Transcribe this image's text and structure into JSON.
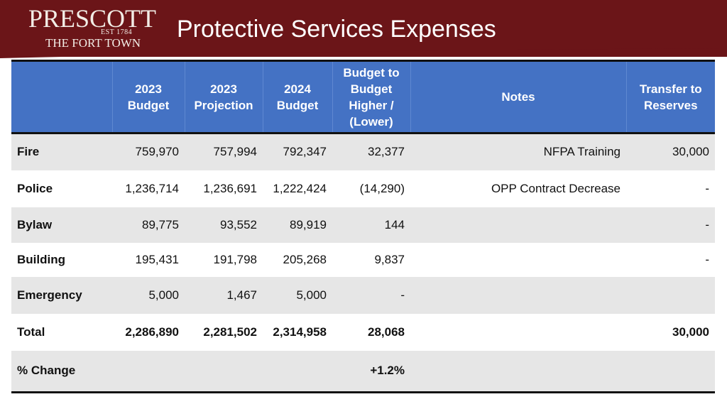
{
  "header": {
    "logo": {
      "name": "PRESCOTT",
      "est": "EST 1784",
      "tagline": "THE FORT TOWN"
    },
    "title": "Protective Services Expenses",
    "bg_color": "#6b1518"
  },
  "table": {
    "header_color": "#4472c4",
    "columns": [
      "",
      "2023 Budget",
      "2023 Projection",
      "2024 Budget",
      "Budget to Budget Higher / (Lower)",
      "Notes",
      "Transfer to Reserves"
    ],
    "rows": [
      {
        "label": "Fire",
        "b2023": "759,970",
        "p2023": "757,994",
        "b2024": "792,347",
        "diff": "32,377",
        "notes": "NFPA Training",
        "transfer": "30,000"
      },
      {
        "label": "Police",
        "b2023": "1,236,714",
        "p2023": "1,236,691",
        "b2024": "1,222,424",
        "diff": "(14,290)",
        "notes": "OPP Contract Decrease",
        "transfer": "-"
      },
      {
        "label": "Bylaw",
        "b2023": "89,775",
        "p2023": "93,552",
        "b2024": "89,919",
        "diff": "144",
        "notes": "",
        "transfer": "-"
      },
      {
        "label": "Building",
        "b2023": "195,431",
        "p2023": "191,798",
        "b2024": "205,268",
        "diff": "9,837",
        "notes": "",
        "transfer": "-"
      },
      {
        "label": "Emergency",
        "b2023": "5,000",
        "p2023": "1,467",
        "b2024": "5,000",
        "diff": "-",
        "notes": "",
        "transfer": ""
      },
      {
        "label": "Total",
        "b2023": "2,286,890",
        "p2023": "2,281,502",
        "b2024": "2,314,958",
        "diff": "28,068",
        "notes": "",
        "transfer": "30,000"
      },
      {
        "label": "% Change",
        "b2023": "",
        "p2023": "",
        "b2024": "",
        "diff": "+1.2%",
        "notes": "",
        "transfer": ""
      }
    ]
  }
}
